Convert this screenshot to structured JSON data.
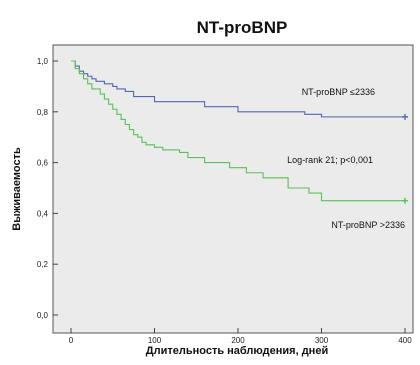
{
  "chart_data": {
    "type": "line",
    "title": "NT-proBNP",
    "xlabel": "Длительность наблюдения, дней",
    "ylabel": "Выживаемость",
    "xlim": [
      0,
      400
    ],
    "ylim": [
      0,
      1.0
    ],
    "x_ticks": [
      0,
      100,
      200,
      300,
      400
    ],
    "y_ticks": [
      0.0,
      0.2,
      0.4,
      0.6,
      0.8,
      1.0
    ],
    "y_tick_labels": [
      "0,0",
      "0,2",
      "0,4",
      "0,6",
      "0,8",
      "1,0"
    ],
    "grid": false,
    "series": [
      {
        "name": "NT-proBNP ≤2336",
        "color": "#5566b0",
        "x": [
          0,
          5,
          10,
          15,
          20,
          25,
          30,
          40,
          50,
          55,
          65,
          75,
          100,
          130,
          160,
          175,
          200,
          250,
          280,
          300,
          400
        ],
        "y": [
          1.0,
          0.98,
          0.96,
          0.95,
          0.94,
          0.93,
          0.92,
          0.91,
          0.9,
          0.89,
          0.88,
          0.86,
          0.84,
          0.84,
          0.82,
          0.82,
          0.8,
          0.8,
          0.79,
          0.78,
          0.78
        ]
      },
      {
        "name": "NT-proBNP >2336",
        "color": "#5bc05b",
        "x": [
          0,
          5,
          10,
          15,
          20,
          25,
          35,
          40,
          45,
          50,
          55,
          60,
          65,
          70,
          75,
          80,
          85,
          90,
          100,
          110,
          130,
          140,
          160,
          190,
          210,
          230,
          260,
          285,
          300,
          400
        ],
        "y": [
          1.0,
          0.97,
          0.95,
          0.93,
          0.91,
          0.89,
          0.87,
          0.85,
          0.83,
          0.81,
          0.79,
          0.77,
          0.75,
          0.73,
          0.71,
          0.7,
          0.68,
          0.67,
          0.66,
          0.65,
          0.64,
          0.62,
          0.6,
          0.58,
          0.56,
          0.54,
          0.5,
          0.48,
          0.45,
          0.45
        ]
      }
    ],
    "annotations": {
      "series1_label": "NT-proBNP ≤2336",
      "series2_label": "NT-proBNP >2336",
      "logrank": "Log-rank 21; p<0,001"
    }
  }
}
